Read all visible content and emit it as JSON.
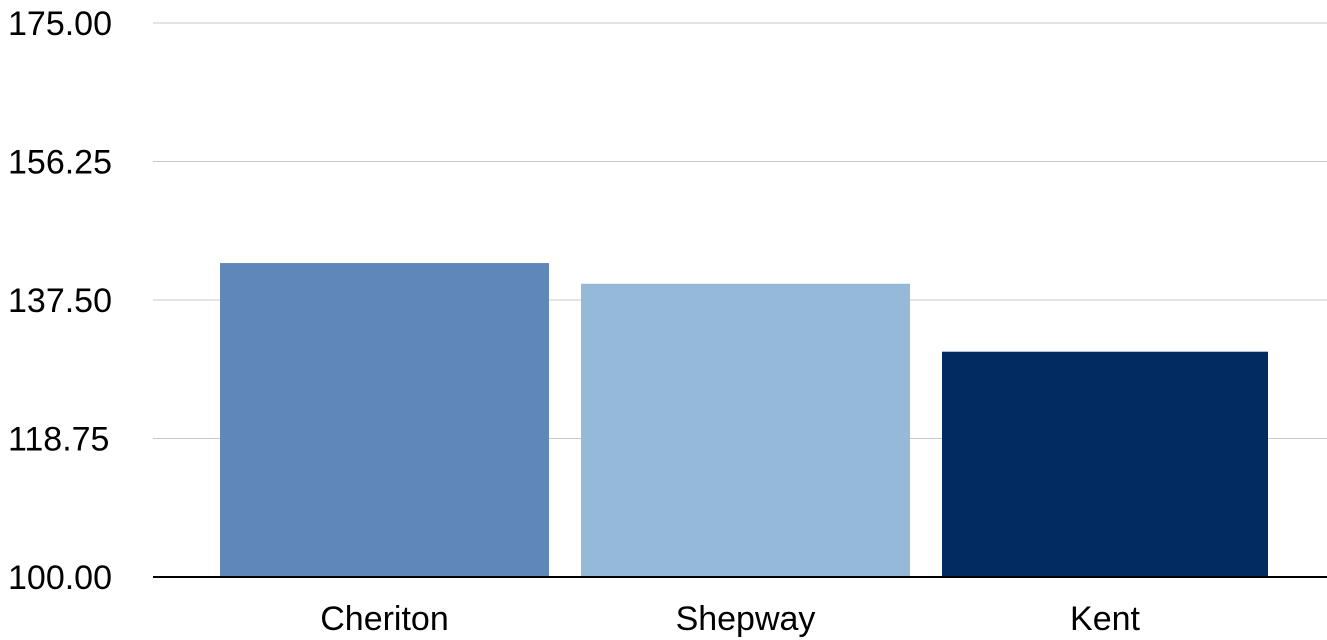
{
  "chart_data": {
    "type": "bar",
    "title": "",
    "xlabel": "",
    "ylabel": "",
    "categories": [
      "Cheriton",
      "Shepway",
      "Kent"
    ],
    "values": [
      142.5,
      139.7,
      130.5
    ],
    "colors": [
      "#5f87b8",
      "#94b9d9",
      "#022c61"
    ],
    "ylim": [
      100,
      175
    ],
    "yticks": [
      100,
      118.75,
      137.5,
      156.25,
      175
    ],
    "ytick_labels": [
      "100.00",
      "118.75",
      "137.50",
      "156.25",
      "175.00"
    ],
    "grid": true,
    "legend": "none"
  },
  "colors": {
    "grid": "#c8c8c8",
    "axis": "#000000",
    "text": "#000000",
    "background": "#ffffff"
  }
}
